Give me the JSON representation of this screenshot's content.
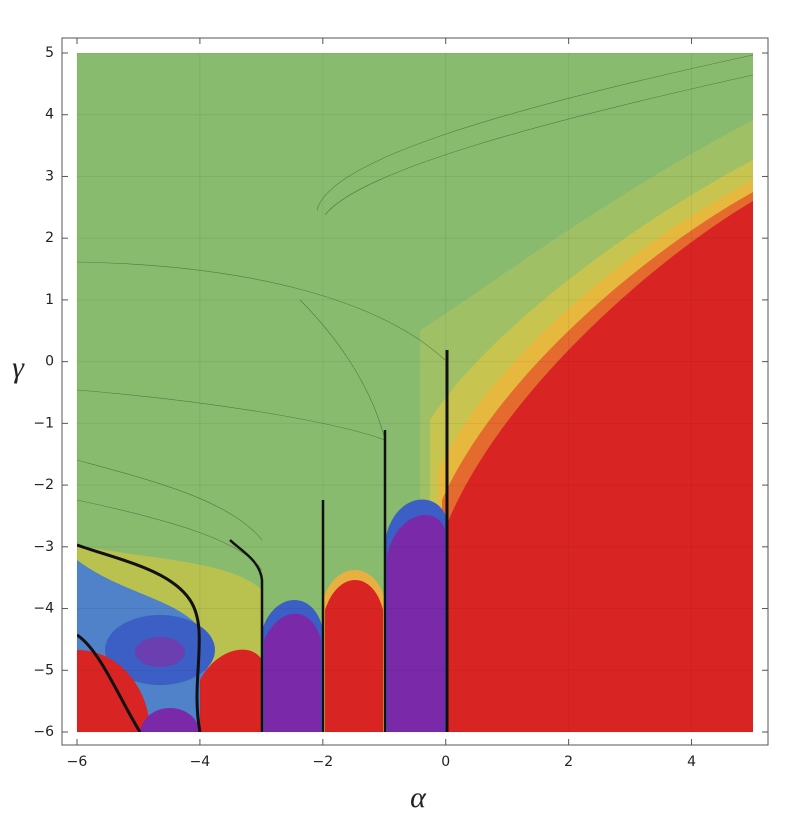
{
  "chart_data": {
    "type": "contour",
    "x_label": "α",
    "y_label": "γ",
    "xlim": [
      -6,
      5
    ],
    "ylim": [
      -6,
      5
    ],
    "xticks": [
      {
        "value": -6,
        "label": "−6"
      },
      {
        "value": -4,
        "label": "−4"
      },
      {
        "value": -2,
        "label": "−2"
      },
      0,
      2,
      4
    ],
    "yticks": [
      {
        "value": -6,
        "label": "−6"
      },
      {
        "value": -5,
        "label": "−5"
      },
      {
        "value": -4,
        "label": "−4"
      },
      {
        "value": -3,
        "label": "−3"
      },
      {
        "value": -2,
        "label": "−2"
      },
      {
        "value": -1,
        "label": "−1"
      },
      0,
      1,
      2,
      3,
      4,
      5
    ],
    "grid": true
  }
}
